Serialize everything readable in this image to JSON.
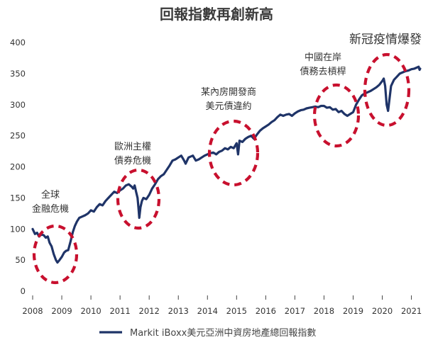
{
  "chart_data": {
    "type": "line",
    "title": "回報指數再創新高",
    "xlabel": "",
    "ylabel": "",
    "xlim": [
      2008.0,
      2021.4
    ],
    "ylim": [
      0,
      400
    ],
    "y_ticks": [
      0,
      50,
      100,
      150,
      200,
      250,
      300,
      350,
      400
    ],
    "x_ticks": [
      "2008",
      "2009",
      "2010",
      "2011",
      "2012",
      "2013",
      "2014",
      "2015",
      "2016",
      "2017",
      "2018",
      "2019",
      "2020",
      "2021"
    ],
    "grid": false,
    "legend_position": "bottom",
    "line_color": "#1f3468",
    "highlight_color": "#c8102e",
    "series": [
      {
        "name": "Markit iBoxx美元亞洲中資房地產總回報指數",
        "points": [
          [
            2008.0,
            100
          ],
          [
            2008.08,
            92
          ],
          [
            2008.15,
            94
          ],
          [
            2008.22,
            88
          ],
          [
            2008.3,
            91
          ],
          [
            2008.38,
            90
          ],
          [
            2008.45,
            86
          ],
          [
            2008.52,
            88
          ],
          [
            2008.58,
            78
          ],
          [
            2008.65,
            72
          ],
          [
            2008.72,
            60
          ],
          [
            2008.8,
            50
          ],
          [
            2008.85,
            46
          ],
          [
            2008.92,
            50
          ],
          [
            2009.0,
            55
          ],
          [
            2009.08,
            62
          ],
          [
            2009.15,
            65
          ],
          [
            2009.22,
            66
          ],
          [
            2009.3,
            80
          ],
          [
            2009.38,
            95
          ],
          [
            2009.45,
            105
          ],
          [
            2009.52,
            112
          ],
          [
            2009.6,
            118
          ],
          [
            2009.7,
            120
          ],
          [
            2009.8,
            122
          ],
          [
            2009.9,
            125
          ],
          [
            2010.0,
            130
          ],
          [
            2010.1,
            128
          ],
          [
            2010.2,
            135
          ],
          [
            2010.3,
            140
          ],
          [
            2010.4,
            138
          ],
          [
            2010.5,
            145
          ],
          [
            2010.6,
            150
          ],
          [
            2010.7,
            155
          ],
          [
            2010.8,
            160
          ],
          [
            2010.9,
            158
          ],
          [
            2011.0,
            162
          ],
          [
            2011.1,
            165
          ],
          [
            2011.2,
            170
          ],
          [
            2011.3,
            172
          ],
          [
            2011.4,
            168
          ],
          [
            2011.45,
            165
          ],
          [
            2011.5,
            170
          ],
          [
            2011.55,
            160
          ],
          [
            2011.6,
            150
          ],
          [
            2011.63,
            135
          ],
          [
            2011.66,
            118
          ],
          [
            2011.7,
            135
          ],
          [
            2011.75,
            145
          ],
          [
            2011.8,
            150
          ],
          [
            2011.9,
            148
          ],
          [
            2012.0,
            155
          ],
          [
            2012.1,
            165
          ],
          [
            2012.2,
            172
          ],
          [
            2012.3,
            180
          ],
          [
            2012.4,
            185
          ],
          [
            2012.5,
            188
          ],
          [
            2012.6,
            195
          ],
          [
            2012.7,
            202
          ],
          [
            2012.8,
            210
          ],
          [
            2012.9,
            212
          ],
          [
            2013.0,
            215
          ],
          [
            2013.1,
            218
          ],
          [
            2013.2,
            210
          ],
          [
            2013.25,
            205
          ],
          [
            2013.35,
            215
          ],
          [
            2013.5,
            218
          ],
          [
            2013.6,
            210
          ],
          [
            2013.7,
            212
          ],
          [
            2013.8,
            215
          ],
          [
            2013.9,
            218
          ],
          [
            2014.0,
            220
          ],
          [
            2014.1,
            222
          ],
          [
            2014.2,
            223
          ],
          [
            2014.3,
            220
          ],
          [
            2014.4,
            224
          ],
          [
            2014.5,
            226
          ],
          [
            2014.6,
            230
          ],
          [
            2014.7,
            228
          ],
          [
            2014.8,
            232
          ],
          [
            2014.9,
            230
          ],
          [
            2015.0,
            238
          ],
          [
            2015.05,
            220
          ],
          [
            2015.1,
            242
          ],
          [
            2015.2,
            240
          ],
          [
            2015.3,
            245
          ],
          [
            2015.4,
            248
          ],
          [
            2015.5,
            250
          ],
          [
            2015.6,
            245
          ],
          [
            2015.7,
            252
          ],
          [
            2015.8,
            258
          ],
          [
            2015.9,
            262
          ],
          [
            2016.0,
            265
          ],
          [
            2016.1,
            268
          ],
          [
            2016.2,
            272
          ],
          [
            2016.3,
            275
          ],
          [
            2016.4,
            280
          ],
          [
            2016.5,
            284
          ],
          [
            2016.6,
            282
          ],
          [
            2016.7,
            284
          ],
          [
            2016.8,
            285
          ],
          [
            2016.9,
            282
          ],
          [
            2017.0,
            286
          ],
          [
            2017.1,
            289
          ],
          [
            2017.2,
            291
          ],
          [
            2017.3,
            292
          ],
          [
            2017.4,
            294
          ],
          [
            2017.5,
            295
          ],
          [
            2017.6,
            296
          ],
          [
            2017.7,
            297
          ],
          [
            2017.8,
            296
          ],
          [
            2017.9,
            298
          ],
          [
            2018.0,
            298
          ],
          [
            2018.1,
            295
          ],
          [
            2018.2,
            296
          ],
          [
            2018.3,
            292
          ],
          [
            2018.4,
            293
          ],
          [
            2018.5,
            288
          ],
          [
            2018.6,
            290
          ],
          [
            2018.7,
            285
          ],
          [
            2018.8,
            282
          ],
          [
            2018.9,
            285
          ],
          [
            2019.0,
            288
          ],
          [
            2019.1,
            300
          ],
          [
            2019.2,
            308
          ],
          [
            2019.3,
            315
          ],
          [
            2019.4,
            318
          ],
          [
            2019.5,
            320
          ],
          [
            2019.6,
            322
          ],
          [
            2019.7,
            325
          ],
          [
            2019.8,
            328
          ],
          [
            2019.9,
            332
          ],
          [
            2020.0,
            338
          ],
          [
            2020.05,
            342
          ],
          [
            2020.1,
            330
          ],
          [
            2020.15,
            300
          ],
          [
            2020.2,
            290
          ],
          [
            2020.25,
            310
          ],
          [
            2020.3,
            330
          ],
          [
            2020.4,
            340
          ],
          [
            2020.5,
            345
          ],
          [
            2020.6,
            350
          ],
          [
            2020.7,
            352
          ],
          [
            2020.8,
            354
          ],
          [
            2020.9,
            355
          ],
          [
            2021.0,
            357
          ],
          [
            2021.1,
            358
          ],
          [
            2021.2,
            360
          ],
          [
            2021.25,
            361
          ],
          [
            2021.28,
            356
          ],
          [
            2021.3,
            358
          ]
        ]
      }
    ],
    "annotations": [
      {
        "text_lines": [
          "全球",
          "金融危機"
        ],
        "size": "normal"
      },
      {
        "text_lines": [
          "歐洲主權",
          "債券危機"
        ],
        "size": "normal"
      },
      {
        "text_lines": [
          "某內房開發商",
          "美元債違約"
        ],
        "size": "normal"
      },
      {
        "text_lines": [
          "中國在岸",
          "債務去槓桿"
        ],
        "size": "normal"
      },
      {
        "text_lines": [
          "新冠疫情爆發"
        ],
        "size": "big"
      }
    ]
  }
}
